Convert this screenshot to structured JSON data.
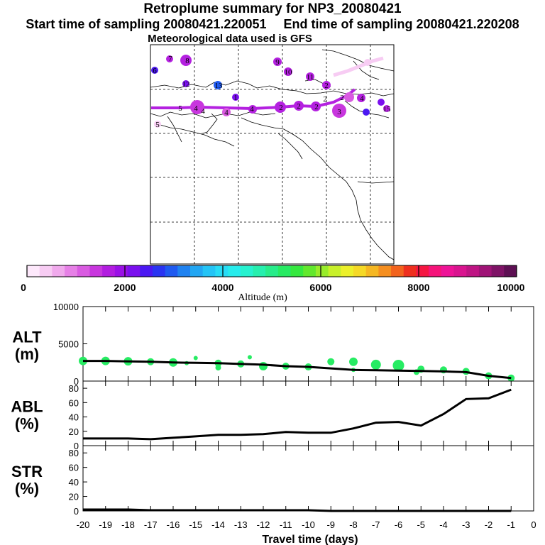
{
  "header": {
    "title": "Retroplume summary for NP3_20080421",
    "start_label": "Start time of sampling 20080421.220051",
    "end_label": "End time of sampling 20080421.220208",
    "met_label": "Meteorological data used is GFS"
  },
  "colorbar": {
    "ticks": [
      "0",
      "2000",
      "4000",
      "6000",
      "8000",
      "10000"
    ],
    "label": "Altitude (m)",
    "colors": [
      "#fde8fb",
      "#f7ccf3",
      "#f0a9ec",
      "#e680e6",
      "#d95be1",
      "#c836de",
      "#b21de0",
      "#9a10e6",
      "#7a10ee",
      "#4b18f2",
      "#2a34f2",
      "#1f5af0",
      "#1f82f0",
      "#22a6f3",
      "#24c4f6",
      "#27dcf6",
      "#27ecec",
      "#26f2cf",
      "#26efae",
      "#27ec8a",
      "#27ea63",
      "#35e83f",
      "#62e82d",
      "#98ec2a",
      "#c8f02a",
      "#ecf02a",
      "#f5d926",
      "#f5b722",
      "#f58e1f",
      "#f2631d",
      "#ee2f1e",
      "#f51642",
      "#f5137a",
      "#ee1397",
      "#d9148f",
      "#be1483",
      "#9f1376",
      "#7e1366",
      "#5d1053"
    ]
  },
  "map": {
    "labels": [
      {
        "t": "7",
        "c": "#b421e0"
      },
      {
        "t": "8",
        "c": "#b421e0"
      },
      {
        "t": "6",
        "c": "#b421e0"
      },
      {
        "t": "9",
        "c": "#b421e0"
      },
      {
        "t": "10",
        "c": "#b421e0"
      },
      {
        "t": "11",
        "c": "#b421e0"
      },
      {
        "t": "12",
        "c": "#b421e0"
      },
      {
        "t": "13",
        "c": "#b421e0"
      },
      {
        "t": "2",
        "c": "#c836de"
      },
      {
        "t": "1",
        "c": "#b421e0"
      },
      {
        "t": "4",
        "c": "#c836de"
      },
      {
        "t": "5",
        "c": "#f7ccf3"
      },
      {
        "t": "3",
        "c": "#c836de"
      },
      {
        "t": "15",
        "c": "#b421e0"
      }
    ]
  },
  "chart_data": [
    {
      "type": "scatter",
      "panel": "ALT",
      "ylabel": "ALT\n(m)",
      "ylabel_line1": "ALT",
      "ylabel_line2": "(m)",
      "xlim": [
        -20,
        0
      ],
      "ylim": [
        0,
        10000
      ],
      "yticks": [
        "0",
        "5000",
        "10000"
      ],
      "line": {
        "x": [
          -20,
          -19,
          -18,
          -17,
          -16,
          -15,
          -14,
          -13,
          -12,
          -11,
          -10,
          -9,
          -8,
          -7,
          -6,
          -5,
          -4,
          -3,
          -2,
          -1
        ],
        "y": [
          2700,
          2700,
          2650,
          2600,
          2500,
          2450,
          2400,
          2300,
          2200,
          2000,
          1900,
          1700,
          1500,
          1450,
          1400,
          1350,
          1300,
          1200,
          700,
          400
        ]
      },
      "points": {
        "x": [
          -20,
          -19,
          -18,
          -17,
          -16,
          -15.4,
          -15,
          -14,
          -14,
          -13,
          -12.6,
          -12,
          -11,
          -10,
          -9,
          -8,
          -8,
          -7,
          -6,
          -5.2,
          -5,
          -4,
          -3,
          -2,
          -1
        ],
        "y": [
          2700,
          2700,
          2650,
          2600,
          2500,
          2400,
          3100,
          2400,
          1800,
          2300,
          3200,
          2000,
          2000,
          1900,
          2600,
          1500,
          2600,
          2200,
          2100,
          1200,
          1600,
          1500,
          1300,
          700,
          400
        ]
      }
    },
    {
      "type": "line",
      "panel": "ABL",
      "ylabel_line1": "ABL",
      "ylabel_line2": "(%)",
      "xlim": [
        -20,
        0
      ],
      "ylim": [
        0,
        90
      ],
      "yticks": [
        "0",
        "20",
        "40",
        "60",
        "80"
      ],
      "x": [
        -20,
        -19,
        -18,
        -17,
        -16,
        -15,
        -14,
        -13,
        -12,
        -11,
        -10,
        -9,
        -8,
        -7,
        -6,
        -5,
        -4,
        -3,
        -2,
        -1
      ],
      "values": [
        10,
        10,
        10,
        9,
        11,
        13,
        15,
        15,
        16,
        19,
        18,
        18,
        24,
        32,
        33,
        28,
        44,
        65,
        66,
        78
      ]
    },
    {
      "type": "line",
      "panel": "STR",
      "ylabel_line1": "STR",
      "ylabel_line2": "(%)",
      "xlim": [
        -20,
        0
      ],
      "ylim": [
        0,
        90
      ],
      "yticks": [
        "0",
        "20",
        "40",
        "60",
        "80"
      ],
      "x": [
        -20,
        -19,
        -18,
        -17,
        -16,
        -15,
        -14,
        -13,
        -12,
        -11,
        -10,
        -9,
        -8,
        -7,
        -6,
        -5,
        -4,
        -3,
        -2,
        -1
      ],
      "values": [
        2,
        2,
        2,
        1,
        1,
        1,
        1,
        1,
        1,
        1,
        1,
        0,
        0,
        0,
        0,
        0,
        0,
        0,
        0,
        0
      ],
      "xlabel": "Travel time (days)",
      "xticks": [
        "-20",
        "-19",
        "-18",
        "-17",
        "-16",
        "-15",
        "-14",
        "-13",
        "-12",
        "-11",
        "-10",
        "-9",
        "-8",
        "-7",
        "-6",
        "-5",
        "-4",
        "-3",
        "-2",
        "-1",
        "0"
      ]
    }
  ]
}
